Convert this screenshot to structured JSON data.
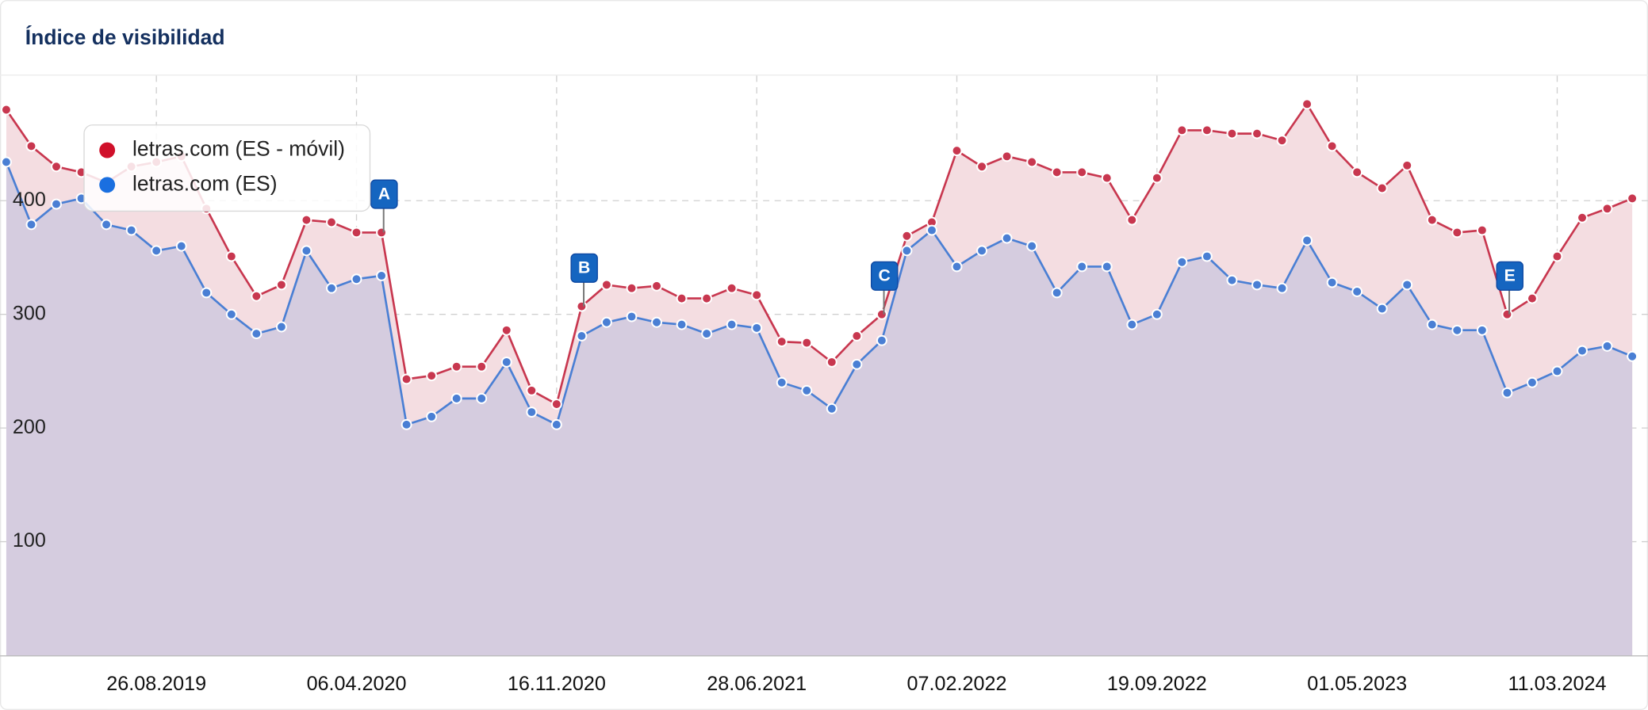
{
  "chart_data": {
    "type": "area",
    "title": "Índice de visibilidad",
    "categories": [
      null,
      null,
      null,
      null,
      null,
      null,
      "26.08.2019",
      null,
      null,
      null,
      null,
      null,
      null,
      null,
      "06.04.2020",
      null,
      null,
      null,
      null,
      null,
      null,
      null,
      "16.11.2020",
      null,
      null,
      null,
      null,
      null,
      null,
      null,
      "28.06.2021",
      null,
      null,
      null,
      null,
      null,
      null,
      null,
      "07.02.2022",
      null,
      null,
      null,
      null,
      null,
      null,
      null,
      "19.09.2022",
      null,
      null,
      null,
      null,
      null,
      null,
      null,
      "01.05.2023",
      null,
      null,
      null,
      null,
      null,
      null,
      null,
      "11.03.2024",
      null,
      null,
      null
    ],
    "series": [
      {
        "name": "letras.com (ES - móvil)",
        "color": "#c8374f",
        "fill": "#f4dde1",
        "values": [
          480,
          448,
          430,
          425,
          416,
          430,
          434,
          439,
          393,
          351,
          316,
          326,
          383,
          381,
          372,
          372,
          243,
          246,
          254,
          254,
          286,
          233,
          221,
          307,
          326,
          323,
          325,
          314,
          314,
          323,
          317,
          276,
          275,
          258,
          281,
          300,
          369,
          381,
          444,
          430,
          439,
          434,
          425,
          425,
          420,
          383,
          420,
          462,
          462,
          459,
          459,
          453,
          485,
          448,
          425,
          411,
          431,
          383,
          372,
          374,
          300,
          314,
          351,
          385,
          393,
          402
        ]
      },
      {
        "name": "letras.com (ES)",
        "color": "#4a7fd4",
        "fill": "#d2cadf",
        "values": [
          434,
          379,
          397,
          402,
          379,
          374,
          356,
          360,
          319,
          300,
          283,
          289,
          356,
          323,
          331,
          334,
          203,
          210,
          226,
          226,
          258,
          214,
          203,
          281,
          293,
          298,
          293,
          291,
          283,
          291,
          288,
          240,
          233,
          217,
          256,
          277,
          356,
          374,
          342,
          356,
          367,
          360,
          319,
          342,
          342,
          291,
          300,
          346,
          351,
          330,
          326,
          323,
          365,
          328,
          320,
          305,
          326,
          291,
          286,
          286,
          231,
          240,
          250,
          268,
          272,
          263
        ]
      }
    ],
    "events": [
      null,
      null,
      null,
      null,
      null,
      null,
      null,
      null,
      null,
      null,
      null,
      null,
      null,
      null,
      null,
      "A",
      null,
      null,
      null,
      null,
      null,
      null,
      null,
      "B",
      null,
      null,
      null,
      null,
      null,
      null,
      null,
      null,
      null,
      null,
      null,
      "C",
      null,
      null,
      null,
      null,
      null,
      null,
      null,
      null,
      null,
      null,
      null,
      null,
      null,
      null,
      null,
      null,
      null,
      null,
      null,
      null,
      null,
      null,
      null,
      null,
      "E",
      null,
      null,
      null,
      null,
      null
    ],
    "ylim": [
      0,
      510
    ],
    "yticks": [
      100,
      200,
      300,
      400
    ],
    "grid": true,
    "legend": "upper left"
  }
}
